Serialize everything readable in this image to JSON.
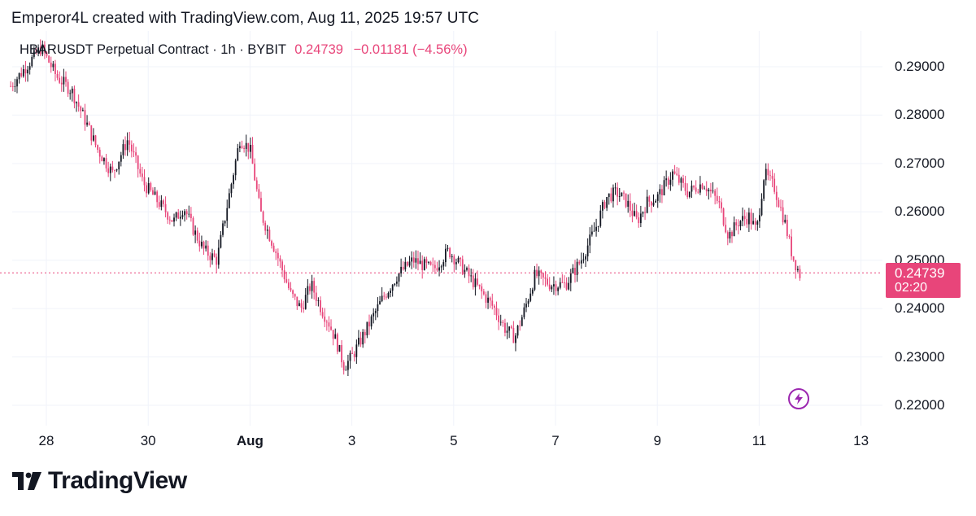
{
  "header": {
    "credit": "Emperor4L created with TradingView.com, Aug 11, 2025 19:57 UTC"
  },
  "legend": {
    "symbol": "HBARUSDT Perpetual Contract · 1h · BYBIT",
    "price": "0.24739",
    "change": "−0.01181 (−4.56%)"
  },
  "price_box": {
    "price": "0.24739",
    "timer": "02:20"
  },
  "footer": {
    "brand": "TradingView"
  },
  "colors": {
    "up": "#131722",
    "down": "#e8457a",
    "grid": "#f0f3fa",
    "accent": "#9c27b0"
  },
  "chart_data": {
    "type": "line",
    "title": "HBARUSDT Perpetual Contract · 1h · BYBIT",
    "ylim": [
      0.215,
      0.2985
    ],
    "y_ticks": [
      "0.29000",
      "0.28000",
      "0.27000",
      "0.26000",
      "0.25000",
      "0.24000",
      "0.23000",
      "0.22000"
    ],
    "y_tick_values": [
      0.29,
      0.28,
      0.27,
      0.26,
      0.25,
      0.24,
      0.23,
      0.22
    ],
    "x_ticks": [
      "28",
      "30",
      "Aug",
      "3",
      "5",
      "7",
      "9",
      "11",
      "13"
    ],
    "x_tick_days": [
      28,
      30,
      32,
      34,
      36,
      38,
      40,
      42,
      44
    ],
    "x_range_days": [
      27.3,
      45.0
    ],
    "last_price": 0.24739,
    "grid": true,
    "series": [
      {
        "values_day": [
          27.3,
          27.6,
          27.9,
          28.2,
          28.5,
          28.8,
          29.0,
          29.3,
          29.6,
          29.9,
          30.2,
          30.5,
          30.7,
          30.9,
          31.1,
          31.35,
          31.6,
          31.8,
          32.0,
          32.2,
          32.5,
          32.8,
          33.0,
          33.2,
          33.4,
          33.55,
          33.7,
          33.85,
          34.0,
          34.3,
          34.6,
          34.9,
          35.2,
          35.6,
          35.9,
          36.2,
          36.5,
          36.8,
          37.0,
          37.2,
          37.4,
          37.6,
          37.9,
          38.2,
          38.5,
          38.8,
          39.0,
          39.2,
          39.4,
          39.6,
          39.8,
          40.0,
          40.3,
          40.6,
          40.9,
          41.2,
          41.4,
          41.6,
          41.8,
          41.95,
          42.1,
          42.3,
          42.5,
          42.65,
          42.8
        ],
        "values": [
          0.286,
          0.29,
          0.294,
          0.288,
          0.285,
          0.278,
          0.273,
          0.268,
          0.275,
          0.266,
          0.262,
          0.258,
          0.261,
          0.256,
          0.252,
          0.25,
          0.264,
          0.275,
          0.273,
          0.26,
          0.252,
          0.243,
          0.24,
          0.245,
          0.24,
          0.237,
          0.233,
          0.228,
          0.23,
          0.236,
          0.242,
          0.247,
          0.25,
          0.248,
          0.252,
          0.248,
          0.244,
          0.24,
          0.236,
          0.234,
          0.24,
          0.247,
          0.245,
          0.245,
          0.25,
          0.257,
          0.263,
          0.264,
          0.262,
          0.258,
          0.262,
          0.263,
          0.268,
          0.264,
          0.266,
          0.262,
          0.255,
          0.258,
          0.259,
          0.256,
          0.268,
          0.265,
          0.258,
          0.251,
          0.247
        ]
      }
    ]
  }
}
